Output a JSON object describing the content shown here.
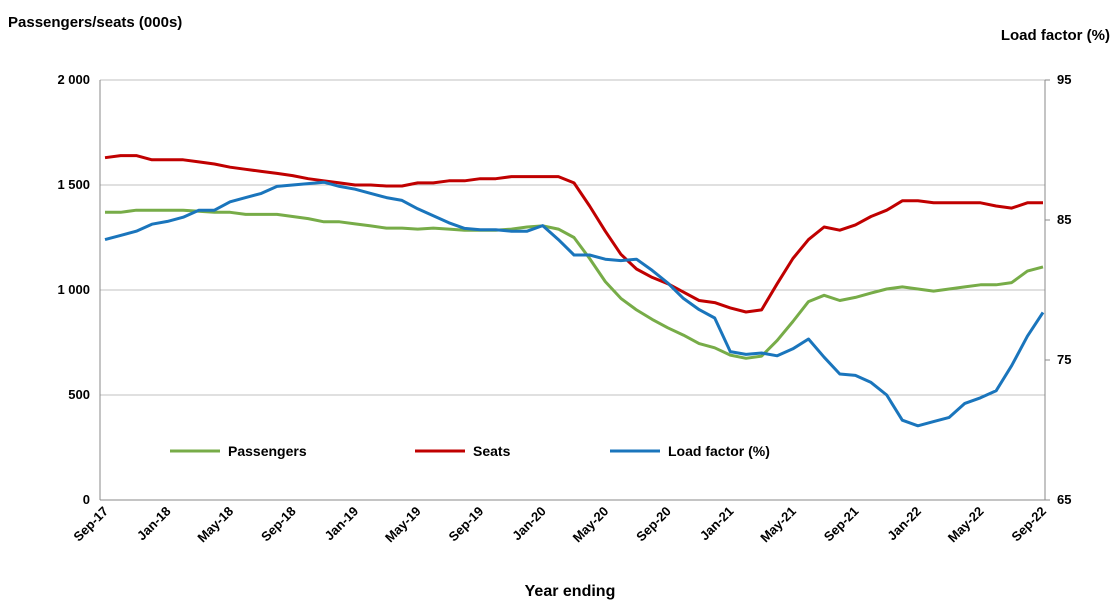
{
  "chart_data": {
    "type": "line",
    "y_label": "Passengers/seats (000s)",
    "y2_label": "Load factor (%)",
    "x_label": "Year ending",
    "categories": [
      "Sep-17",
      null,
      null,
      null,
      "Jan-18",
      null,
      null,
      null,
      "May-18",
      null,
      null,
      null,
      "Sep-18",
      null,
      null,
      null,
      "Jan-19",
      null,
      null,
      null,
      "May-19",
      null,
      null,
      null,
      "Sep-19",
      null,
      null,
      null,
      "Jan-20",
      null,
      null,
      null,
      "May-20",
      null,
      null,
      null,
      "Sep-20",
      null,
      null,
      null,
      "Jan-21",
      null,
      null,
      null,
      "May-21",
      null,
      null,
      null,
      "Sep-21",
      null,
      null,
      null,
      "Jan-22",
      null,
      null,
      null,
      "May-22",
      null,
      null,
      null,
      "Sep-22"
    ],
    "series": [
      {
        "name": "Passengers",
        "color": "#77ac48",
        "values": [
          1370,
          1370,
          1380,
          1380,
          1380,
          1380,
          1375,
          1370,
          1370,
          1360,
          1360,
          1360,
          1350,
          1340,
          1325,
          1325,
          1315,
          1305,
          1295,
          1295,
          1290,
          1295,
          1290,
          1285,
          1285,
          1285,
          1290,
          1300,
          1305,
          1290,
          1250,
          1150,
          1040,
          960,
          905,
          860,
          820,
          785,
          745,
          725,
          690,
          675,
          685,
          760,
          850,
          945,
          975,
          950,
          965,
          985,
          1005,
          1015,
          1005,
          995,
          1005,
          1015,
          1025,
          1025,
          1035,
          1090,
          1110
        ]
      },
      {
        "name": "Seats",
        "color": "#c00000",
        "values": [
          1630,
          1640,
          1640,
          1620,
          1620,
          1620,
          1610,
          1600,
          1585,
          1575,
          1565,
          1555,
          1545,
          1530,
          1520,
          1510,
          1500,
          1500,
          1495,
          1495,
          1510,
          1510,
          1520,
          1520,
          1530,
          1530,
          1540,
          1540,
          1540,
          1540,
          1510,
          1400,
          1280,
          1170,
          1100,
          1060,
          1030,
          990,
          950,
          940,
          915,
          895,
          905,
          1030,
          1150,
          1240,
          1300,
          1285,
          1310,
          1350,
          1380,
          1425,
          1425,
          1415,
          1415,
          1415,
          1415,
          1400,
          1390,
          1415,
          1415
        ]
      },
      {
        "name": "Load factor (%)",
        "color": "#1a75bc",
        "axis": "y2",
        "values": [
          83.6,
          83.9,
          84.2,
          84.7,
          84.9,
          85.2,
          85.7,
          85.7,
          86.3,
          86.6,
          86.9,
          87.4,
          87.5,
          87.6,
          87.7,
          87.4,
          87.2,
          86.9,
          86.6,
          86.4,
          85.8,
          85.3,
          84.8,
          84.4,
          84.3,
          84.3,
          84.2,
          84.2,
          84.6,
          83.6,
          82.5,
          82.5,
          82.2,
          82.1,
          82.2,
          81.4,
          80.5,
          79.4,
          78.6,
          78.0,
          75.6,
          75.4,
          75.5,
          75.3,
          75.8,
          76.5,
          75.2,
          74.0,
          73.9,
          73.4,
          72.5,
          70.7,
          70.3,
          70.6,
          70.9,
          71.9,
          72.3,
          72.8,
          74.6,
          76.7,
          78.4
        ]
      }
    ],
    "ylim": [
      0,
      2000
    ],
    "yticks": [
      0,
      500,
      {
        "value": 1000,
        "label": "1 000"
      },
      {
        "value": 1500,
        "label": "1 500"
      },
      {
        "value": 2000,
        "label": "2 000"
      }
    ],
    "y2lim": [
      65,
      95
    ],
    "y2ticks": [
      65,
      75,
      85,
      95
    ],
    "grid": true,
    "legend": "bottom"
  }
}
